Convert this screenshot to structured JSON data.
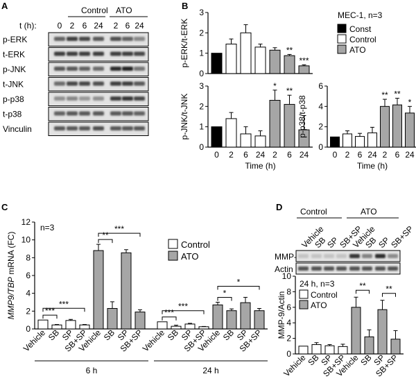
{
  "figure": {
    "panel_labels": [
      "A",
      "B",
      "C",
      "D"
    ],
    "blot_a": {
      "group_labels": [
        "Control",
        "ATO"
      ],
      "time_prefix": "t (h):",
      "timepoints": [
        "0",
        "2",
        "6",
        "24",
        "2",
        "6",
        "24"
      ],
      "rows": [
        "p-ERK",
        "t-ERK",
        "p-JNK",
        "t-JNK",
        "p-p38",
        "t-p38",
        "Vinculin"
      ]
    },
    "legend_b": {
      "title": "MEC-1, n=3",
      "items": [
        {
          "label": "Const",
          "color": "#000000"
        },
        {
          "label": "Control",
          "color": "#ffffff"
        },
        {
          "label": "ATO",
          "color": "#a6a6a6"
        }
      ]
    },
    "blot_d": {
      "group_labels": [
        "Control",
        "ATO"
      ],
      "lane_labels": [
        "Vehicle",
        "SB",
        "SP",
        "SB+SP",
        "Vehicle",
        "SB",
        "SP",
        "SB+SP"
      ],
      "rows": [
        "MMP-9",
        "Actin"
      ]
    },
    "legend_c": [
      {
        "label": "Control",
        "color": "#ffffff"
      },
      {
        "label": "ATO",
        "color": "#a6a6a6"
      }
    ],
    "legend_d": [
      {
        "label": "Control",
        "color": "#ffffff"
      },
      {
        "label": "ATO",
        "color": "#a6a6a6"
      }
    ]
  },
  "chart_data": [
    {
      "id": "B-erk",
      "type": "bar",
      "ylabel": "p-ERK/t-ERK",
      "ylim": [
        0,
        3
      ],
      "yticks": [
        0,
        1,
        2,
        3
      ],
      "categories": [
        "0",
        "2",
        "6",
        "24",
        "2",
        "6",
        "24"
      ],
      "xlabel": "",
      "values": [
        1.0,
        1.45,
        2.0,
        1.3,
        1.15,
        0.88,
        0.38
      ],
      "errors": [
        0,
        0.25,
        0.4,
        0.15,
        0.12,
        0.06,
        0.05
      ],
      "groups": [
        "const",
        "ctrl",
        "ctrl",
        "ctrl",
        "ato",
        "ato",
        "ato"
      ],
      "annotations": [
        "",
        "",
        "",
        "",
        "",
        "**",
        "***"
      ]
    },
    {
      "id": "B-jnk",
      "type": "bar",
      "ylabel": "p-JNK/t-JNK",
      "ylim": [
        0,
        3
      ],
      "yticks": [
        0,
        1,
        2,
        3
      ],
      "categories": [
        "0",
        "2",
        "6",
        "24",
        "2",
        "6",
        "24"
      ],
      "xlabel": "Time (h)",
      "values": [
        1.0,
        1.4,
        0.65,
        0.55,
        2.3,
        2.1,
        0.85
      ],
      "errors": [
        0,
        0.3,
        0.35,
        0.25,
        0.5,
        0.45,
        0.7
      ],
      "groups": [
        "const",
        "ctrl",
        "ctrl",
        "ctrl",
        "ato",
        "ato",
        "ato"
      ],
      "annotations": [
        "",
        "",
        "",
        "",
        "*",
        "**",
        ""
      ]
    },
    {
      "id": "B-p38",
      "type": "bar",
      "ylabel": "p-p38/t-p38",
      "ylim": [
        0,
        6
      ],
      "yticks": [
        0,
        2,
        4,
        6
      ],
      "categories": [
        "0",
        "2",
        "6",
        "24",
        "2",
        "6",
        "24"
      ],
      "xlabel": "Time (h)",
      "values": [
        1.0,
        1.3,
        1.05,
        1.4,
        4.0,
        4.15,
        3.35
      ],
      "errors": [
        0,
        0.3,
        0.3,
        0.55,
        0.7,
        0.65,
        0.65
      ],
      "groups": [
        "const",
        "ctrl",
        "ctrl",
        "ctrl",
        "ato",
        "ato",
        "ato"
      ],
      "annotations": [
        "",
        "",
        "",
        "",
        "**",
        "**",
        "*"
      ]
    },
    {
      "id": "C",
      "type": "bar",
      "title": "n=3",
      "ylabel_parts": [
        "MMP9/TBP",
        " mRNA (FC)"
      ],
      "ylim": [
        0,
        12
      ],
      "yticks": [
        0,
        2,
        4,
        6,
        8,
        10,
        12
      ],
      "categories": [
        "Vehicle",
        "SB",
        "SP",
        "SB+SP",
        "Vehicle",
        "SB",
        "SP",
        "SB+SP",
        "Vehicle",
        "SB",
        "SP",
        "SB+SP",
        "Vehicle",
        "SB",
        "SP",
        "SB+SP"
      ],
      "values": [
        1.0,
        0.45,
        0.95,
        0.45,
        8.8,
        2.3,
        8.55,
        1.9,
        0.8,
        0.3,
        0.55,
        0.25,
        2.7,
        2.05,
        2.95,
        2.05
      ],
      "errors": [
        0,
        0.05,
        0.12,
        0.05,
        0.7,
        0.75,
        0.35,
        0.25,
        0,
        0.12,
        0.08,
        0.03,
        0.3,
        0.2,
        0.6,
        0.25
      ],
      "groups": [
        "ctrl",
        "ctrl",
        "ctrl",
        "ctrl",
        "ato",
        "ato",
        "ato",
        "ato",
        "ctrl",
        "ctrl",
        "ctrl",
        "ctrl",
        "ato",
        "ato",
        "ato",
        "ato"
      ],
      "group_labels": [
        "6 h",
        "24 h"
      ],
      "brackets": [
        {
          "from": 0,
          "to": 1,
          "label": "***"
        },
        {
          "from": 0,
          "to": 3,
          "label": "***"
        },
        {
          "from": 4,
          "to": 5,
          "label": "**"
        },
        {
          "from": 4,
          "to": 7,
          "label": "***"
        },
        {
          "from": 8,
          "to": 9,
          "label": "***"
        },
        {
          "from": 8,
          "to": 11,
          "label": "***"
        },
        {
          "from": 12,
          "to": 13,
          "label": "*"
        },
        {
          "from": 12,
          "to": 15,
          "label": "*"
        }
      ]
    },
    {
      "id": "D",
      "type": "bar",
      "title": "24 h, n=3",
      "ylabel": "MMP-9/Actin",
      "ylim": [
        0,
        10
      ],
      "yticks": [
        0,
        2,
        4,
        6,
        8,
        10
      ],
      "categories": [
        "Vehicle",
        "SB",
        "SP",
        "SB+SP",
        "Vehicle",
        "SB",
        "SP",
        "SB+SP"
      ],
      "values": [
        1.0,
        1.2,
        1.05,
        0.95,
        6.0,
        2.2,
        5.7,
        1.9
      ],
      "errors": [
        0,
        0.25,
        0.15,
        0.3,
        1.3,
        0.9,
        1.2,
        1.1
      ],
      "groups": [
        "ctrl",
        "ctrl",
        "ctrl",
        "ctrl",
        "ato",
        "ato",
        "ato",
        "ato"
      ],
      "brackets": [
        {
          "from": 4,
          "to": 5,
          "label": "**"
        },
        {
          "from": 6,
          "to": 7,
          "label": "**"
        }
      ]
    }
  ]
}
